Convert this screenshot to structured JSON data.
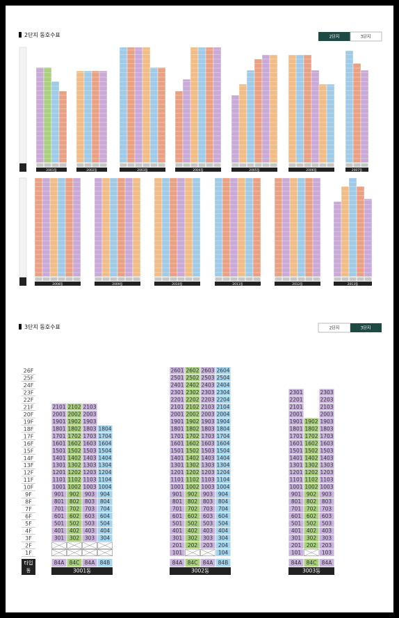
{
  "complex2": {
    "title": "2단지 동호수표",
    "tabs": [
      "2단지",
      "3단지"
    ],
    "buildings": [
      "2001동",
      "2002동",
      "2003동",
      "2004동",
      "2005동",
      "2006동",
      "2007동",
      "2008동",
      "2009동",
      "2010동",
      "2011동",
      "2012동",
      "2013동"
    ]
  },
  "complex3": {
    "title": "3단지 동호수표",
    "tabs": [
      "2단지",
      "3단지"
    ],
    "floors": [
      "26F",
      "25F",
      "24F",
      "23F",
      "22F",
      "21F",
      "20F",
      "19F",
      "18F",
      "17F",
      "16F",
      "15F",
      "14F",
      "13F",
      "12F",
      "11F",
      "10F",
      "9F",
      "8F",
      "7F",
      "6F",
      "5F",
      "4F",
      "3F",
      "2F",
      "1F"
    ],
    "type_header": "타입",
    "building_header": "동",
    "type_colors": {
      "84A": "#c9b2dd",
      "84C": "#a9d07c",
      "84B": "#a3d5ef"
    },
    "buildings": [
      {
        "name": "3001동",
        "types": [
          "84A",
          "84C",
          "84A",
          "84B"
        ],
        "units": [
          [
            null,
            null,
            301,
            401,
            501,
            601,
            701,
            801,
            901,
            1001,
            1101,
            1201,
            1301,
            1401,
            1501,
            1601,
            1701,
            1801,
            1901,
            2001,
            2101
          ],
          [
            null,
            null,
            302,
            402,
            502,
            602,
            702,
            802,
            902,
            1002,
            1102,
            1202,
            1302,
            1402,
            1502,
            1602,
            1702,
            1802,
            1902,
            2002,
            2102
          ],
          [
            null,
            null,
            303,
            403,
            503,
            603,
            703,
            803,
            903,
            1003,
            1103,
            1203,
            1303,
            1403,
            1503,
            1603,
            1703,
            1803,
            1903,
            2003,
            2103
          ],
          [
            null,
            null,
            304,
            404,
            504,
            604,
            704,
            804,
            904,
            1004,
            1104,
            1204,
            1304,
            1404,
            1504,
            1604,
            1704,
            1804
          ]
        ]
      },
      {
        "name": "3002동",
        "types": [
          "84A",
          "84C",
          "84A",
          "84B"
        ],
        "units": [
          [
            101,
            201,
            301,
            401,
            501,
            601,
            701,
            801,
            901,
            1001,
            1101,
            1201,
            1301,
            1401,
            1501,
            1601,
            1701,
            1801,
            1901,
            2001,
            2101,
            2201,
            2301,
            2401,
            2501,
            2601
          ],
          [
            null,
            202,
            302,
            402,
            502,
            602,
            702,
            802,
            902,
            1002,
            1102,
            1202,
            1302,
            1402,
            1502,
            1602,
            1702,
            1802,
            1902,
            2002,
            2102,
            2202,
            2302,
            2402,
            2502,
            2602
          ],
          [
            null,
            203,
            303,
            403,
            503,
            603,
            703,
            803,
            903,
            1003,
            1103,
            1203,
            1303,
            1403,
            1503,
            1603,
            1703,
            1803,
            1903,
            2003,
            2103,
            2203,
            2303,
            2403,
            2503,
            2603
          ],
          [
            104,
            204,
            304,
            404,
            504,
            604,
            704,
            804,
            904,
            1004,
            1104,
            1204,
            1304,
            1404,
            1504,
            1604,
            1704,
            1804,
            1904,
            2004,
            2104,
            2204,
            2304,
            2404,
            2504,
            2604
          ]
        ]
      },
      {
        "name": "3003동",
        "types": [
          "84A",
          "84C",
          "84A"
        ],
        "units": [
          [
            101,
            201,
            301,
            401,
            501,
            601,
            701,
            801,
            901,
            1001,
            1101,
            1201,
            1301,
            1401,
            1501,
            1601,
            1701,
            1801,
            1901,
            2001,
            2101,
            2201,
            2301
          ],
          [
            null,
            202,
            302,
            402,
            502,
            602,
            702,
            802,
            902,
            1002,
            1102,
            1202,
            1302,
            1402,
            1502,
            1602,
            1702,
            1802,
            1902
          ],
          [
            103,
            203,
            303,
            403,
            503,
            603,
            703,
            803,
            903,
            1003,
            1103,
            1203,
            1303,
            1403,
            1503,
            1603,
            1703,
            1803,
            1903,
            2003,
            2103,
            2203,
            2303
          ]
        ]
      }
    ]
  }
}
